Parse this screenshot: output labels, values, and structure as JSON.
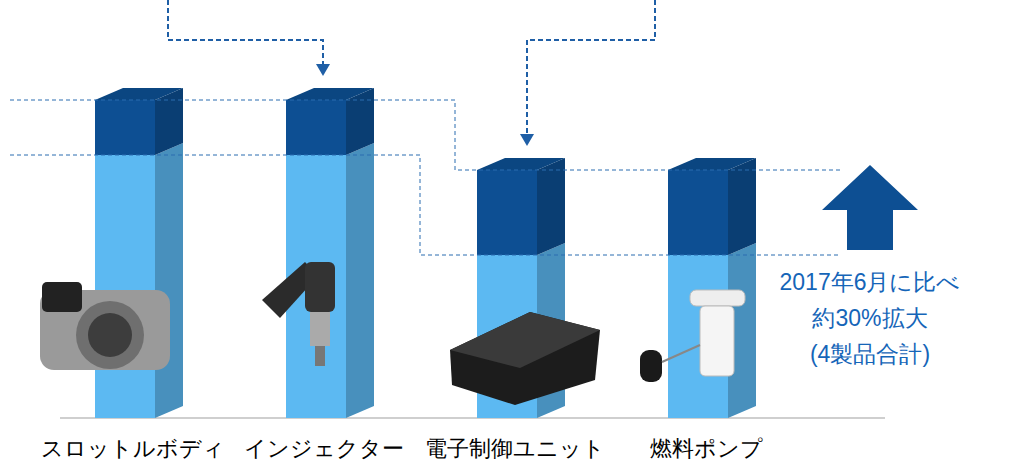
{
  "chart_data": {
    "type": "bar",
    "stacked": true,
    "tick_labels": "x",
    "categories": [
      "スロットルボディ",
      "インジェクター",
      "電子制御ユニット",
      "燃料ポンプ"
    ],
    "series": [
      {
        "color": "#5cb9f2",
        "values": [
          263,
          263,
          163,
          163
        ]
      },
      {
        "color": "#0d4f93",
        "values": [
          55,
          55,
          85,
          85
        ]
      }
    ],
    "ylim": [
      0,
      330
    ],
    "annotations": [
      "2017年6月に比べ",
      "約30%拡大",
      "(4製品合計)"
    ]
  }
}
